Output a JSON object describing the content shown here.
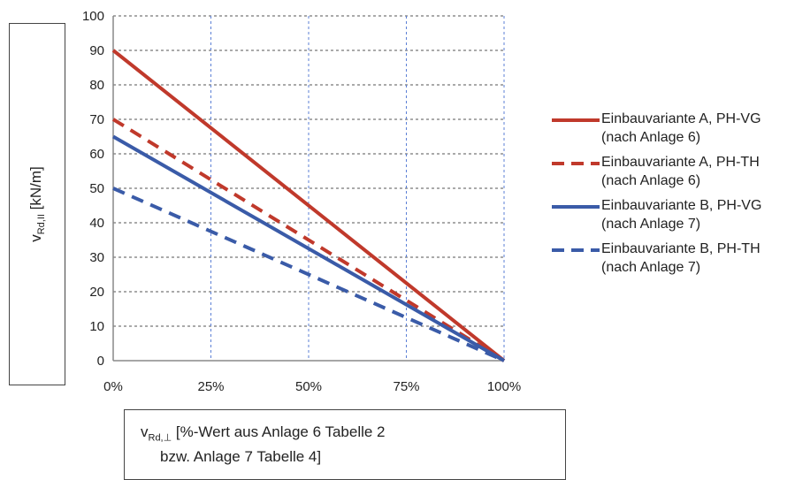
{
  "chart_data": {
    "type": "line",
    "x": [
      0,
      100
    ],
    "xlim": [
      0,
      100
    ],
    "ylim": [
      0,
      100
    ],
    "x_ticks": [
      "0%",
      "25%",
      "50%",
      "75%",
      "100%"
    ],
    "x_tick_values": [
      0,
      25,
      50,
      75,
      100
    ],
    "y_ticks": [
      0,
      10,
      20,
      30,
      40,
      50,
      60,
      70,
      80,
      90,
      100
    ],
    "grid": true,
    "legend_position": "right",
    "ylabel": {
      "main": "v",
      "sub": "Rd,II",
      "unit": " [kN/m]"
    },
    "xlabel": {
      "main": "v",
      "sub": "Rd,⊥",
      "line1": " [%-Wert aus Anlage 6 Tabelle 2",
      "line2": "bzw. Anlage 7 Tabelle 4]"
    },
    "series": [
      {
        "name": "Einbauvariante A, PH-VG",
        "name_line2": "(nach Anlage 6)",
        "values": [
          90,
          0
        ],
        "color": "#c0392b",
        "dash": "solid"
      },
      {
        "name": "Einbauvariante A, PH-TH",
        "name_line2": "(nach Anlage 6)",
        "values": [
          70,
          0
        ],
        "color": "#c0392b",
        "dash": "dashed"
      },
      {
        "name": "Einbauvariante B, PH-VG",
        "name_line2": "(nach Anlage 7)",
        "values": [
          65,
          0
        ],
        "color": "#3a5ba8",
        "dash": "solid"
      },
      {
        "name": "Einbauvariante B, PH-TH",
        "name_line2": "(nach Anlage 7)",
        "values": [
          50,
          0
        ],
        "color": "#3a5ba8",
        "dash": "dashed"
      }
    ]
  }
}
